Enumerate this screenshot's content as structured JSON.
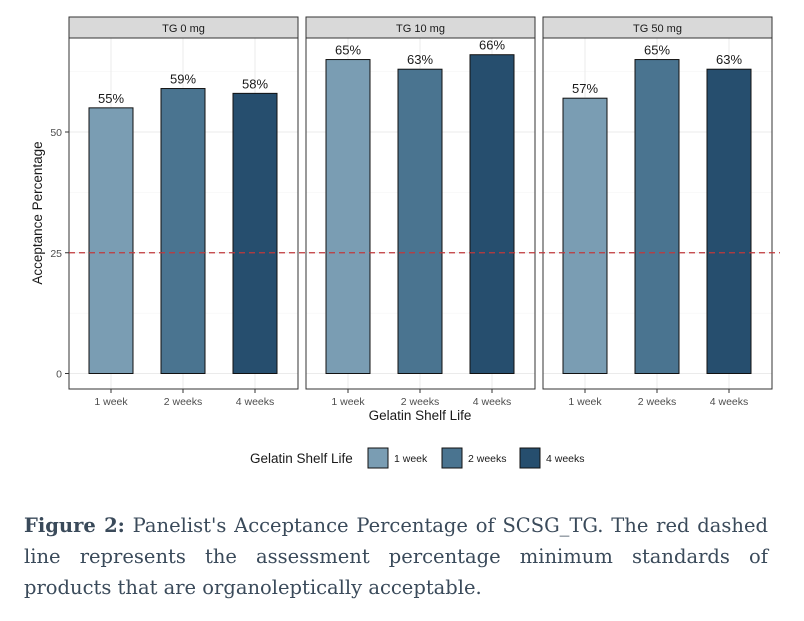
{
  "chart_data": {
    "type": "bar",
    "facets": [
      "TG 0 mg",
      "TG 10 mg",
      "TG 50 mg"
    ],
    "categories": [
      "1 week",
      "2 weeks",
      "4 weeks"
    ],
    "series_values": [
      [
        55,
        59,
        58
      ],
      [
        65,
        63,
        66
      ],
      [
        57,
        65,
        63
      ]
    ],
    "data_labels": [
      [
        "55%",
        "59%",
        "58%"
      ],
      [
        "65%",
        "63%",
        "66%"
      ],
      [
        "57%",
        "65%",
        "63%"
      ]
    ],
    "colors": [
      "#7a9db3",
      "#4a7490",
      "#264e6e"
    ],
    "xlabel": "Gelatin Shelf Life",
    "ylabel": "Acceptance Percentage",
    "y_ticks": [
      "0",
      "25",
      "50"
    ],
    "ylim": [
      0,
      68
    ],
    "reference_line": {
      "y": 25,
      "color": "#c0393b",
      "style": "dashed"
    },
    "grid": true,
    "legend": {
      "title": "Gelatin Shelf Life",
      "items": [
        "1 week",
        "2 weeks",
        "4 weeks"
      ],
      "placement": "bottom"
    }
  },
  "caption": {
    "label": "Figure 2:",
    "text": " Panelist's Acceptance Percentage of SCSG_TG. The red dashed line represents the assessment percentage minimum standards of products that are organoleptically acceptable."
  }
}
